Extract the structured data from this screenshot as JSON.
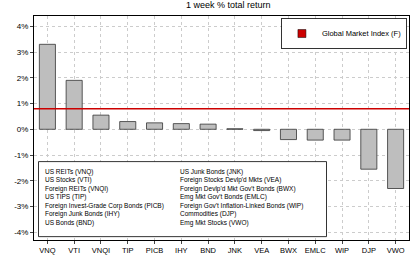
{
  "chart_data": {
    "type": "bar",
    "title": "1 week % total return",
    "categories": [
      "VNQ",
      "VTI",
      "VNQI",
      "TIP",
      "PICB",
      "IHY",
      "BND",
      "JNK",
      "VEA",
      "BWX",
      "EMLC",
      "WIP",
      "DJP",
      "VWO"
    ],
    "values": [
      3.3,
      1.9,
      0.55,
      0.3,
      0.25,
      0.22,
      0.2,
      0.02,
      -0.05,
      -0.4,
      -0.42,
      -0.42,
      -1.55,
      -2.3
    ],
    "color": "#bebebe",
    "ylim": [
      -4.3,
      4.4
    ],
    "yticks": [
      {
        "value": -4,
        "label": "-4%"
      },
      {
        "value": -3,
        "label": "-3%"
      },
      {
        "value": -2,
        "label": "-2%"
      },
      {
        "value": -1,
        "label": "-1%"
      },
      {
        "value": 0,
        "label": "0%"
      },
      {
        "value": 1,
        "label": "1%"
      },
      {
        "value": 2,
        "label": "2%"
      },
      {
        "value": 3,
        "label": "3%"
      },
      {
        "value": 4,
        "label": "4%"
      }
    ],
    "grid": true,
    "legend": "top-right",
    "reference_line": {
      "name": "Global Market Index (F)",
      "value": 0.8,
      "color": "#cc0000"
    },
    "key": [
      "US REITs (VNQ)",
      "US Stocks (VTI)",
      "Foreign REITs (VNQI)",
      "US TIPS (TIP)",
      "Foreign Invest-Grade Corp Bonds (PICB)",
      "Foreign Junk Bonds (IHY)",
      "US Bonds (BND)",
      "US Junk Bonds (JNK)",
      "Foreign Stocks Devlp'd Mkts (VEA)",
      "Foreign Devlp'd Mkt Gov't Bonds (BWX)",
      "Emg Mkt Gov't Bonds (EMLC)",
      "Foreign Gov't Inflation-Linked Bonds (WIP)",
      "Commodities (DJP)",
      "Emg Mkt Stocks (VWO)"
    ]
  }
}
